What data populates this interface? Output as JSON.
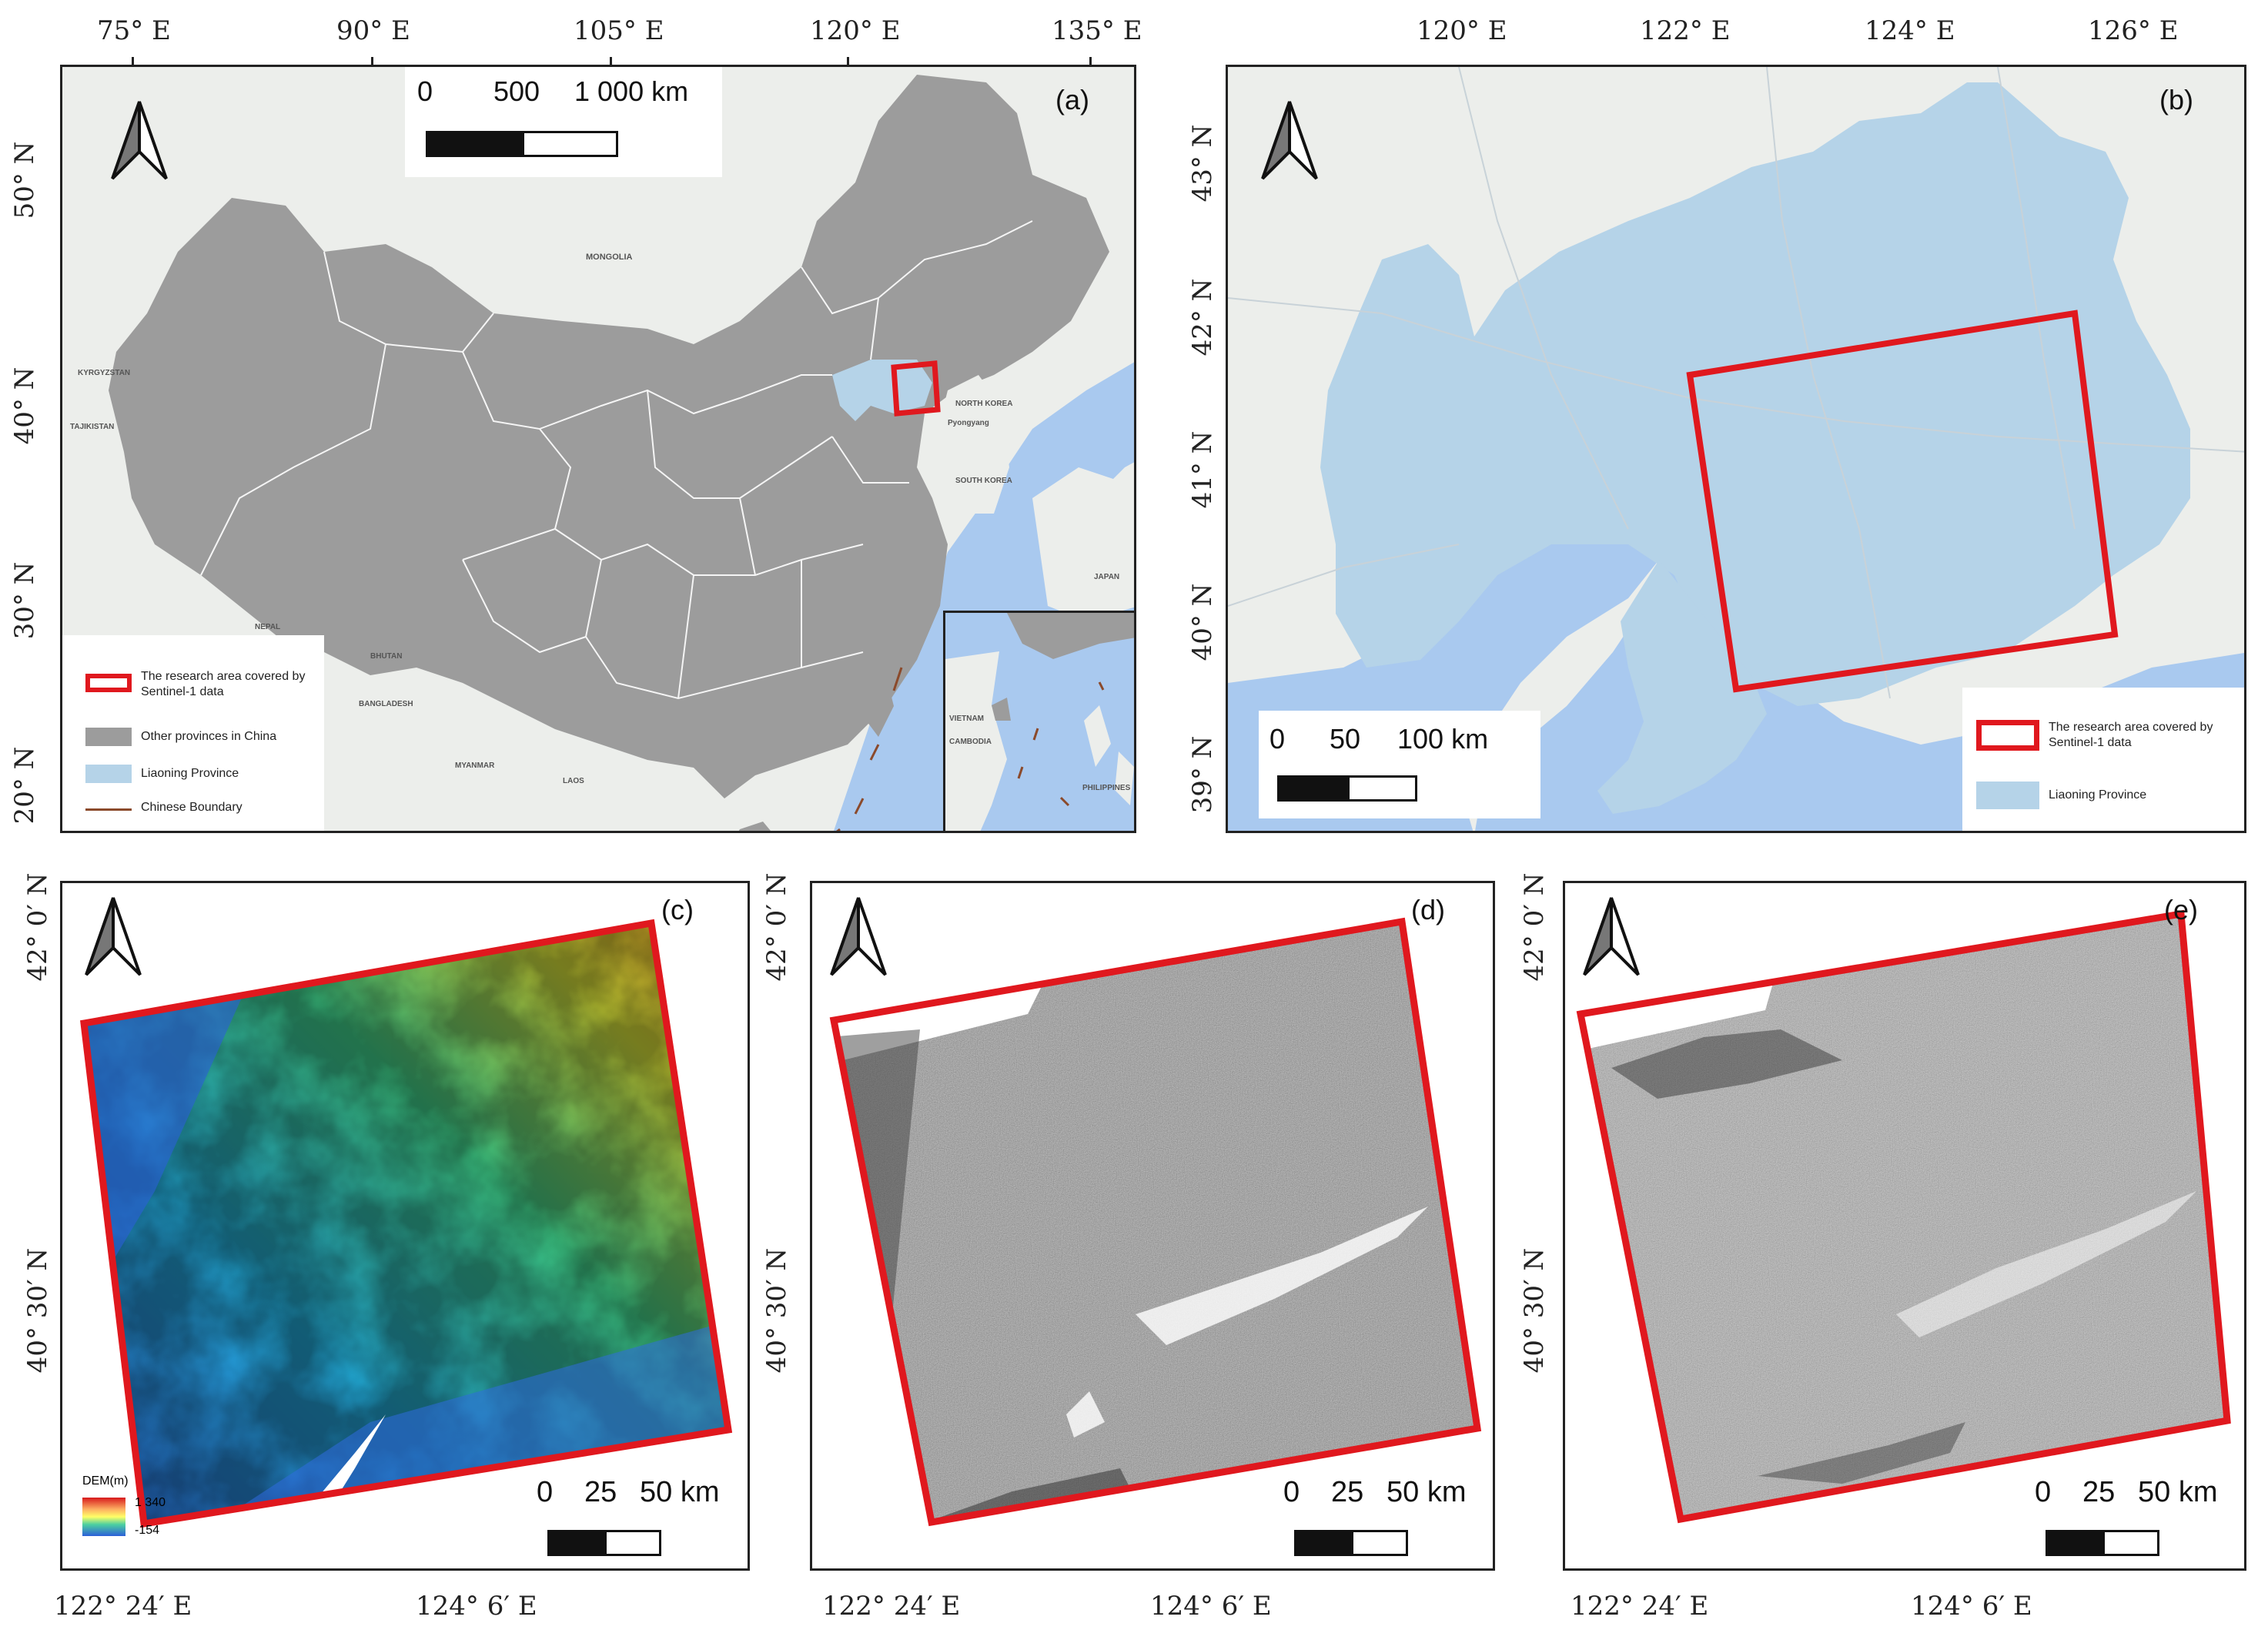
{
  "panels": {
    "a": {
      "label": "(a)",
      "top_ticks": [
        "75° E",
        "90° E",
        "105° E",
        "120° E",
        "135° E"
      ],
      "left_ticks": [
        "50° N",
        "40° N",
        "30° N",
        "20° N"
      ],
      "scale": {
        "t0": "0",
        "t1": "500",
        "t2": "1 000 km"
      },
      "legend": [
        {
          "label": "The research area covered by Sentinel-1 data"
        },
        {
          "label": "Other provinces in China"
        },
        {
          "label": "Liaoning Province"
        },
        {
          "label": "Chinese Boundary"
        }
      ],
      "place_names": [
        "MONGOLIA",
        "NORTH KOREA",
        "SOUTH KOREA",
        "KYRGYZSTAN",
        "TAJIKISTAN",
        "BHUTAN",
        "BANGLADESH",
        "MYANMAR",
        "LAOS",
        "VIETNAM",
        "CAMBODIA",
        "PHILIPPINES",
        "JAPAN",
        "NEPAL",
        "Pyongyang"
      ]
    },
    "b": {
      "label": "(b)",
      "top_ticks": [
        "120° E",
        "122° E",
        "124° E",
        "126° E"
      ],
      "left_ticks": [
        "43° N",
        "42° N",
        "41° N",
        "40° N",
        "39° N"
      ],
      "scale": {
        "t0": "0",
        "t1": "50",
        "t2": "100 km"
      },
      "legend": [
        {
          "label": "The research area covered by Sentinel-1 data"
        },
        {
          "label": "Liaoning Province"
        }
      ]
    },
    "c": {
      "label": "(c)",
      "left_ticks": [
        "42° 0′ N",
        "40° 30′ N"
      ],
      "bottom_ticks": [
        "122° 24′ E",
        "124° 6′ E"
      ],
      "scale": {
        "t0": "0",
        "t1": "25",
        "t2": "50 km"
      },
      "dem": {
        "title": "DEM(m)",
        "max": "1 340",
        "min": "-154"
      }
    },
    "d": {
      "label": "(d)",
      "left_ticks": [
        "42° 0′ N",
        "40° 30′ N"
      ],
      "bottom_ticks": [
        "122° 24′ E",
        "124° 6′ E"
      ],
      "scale": {
        "t0": "0",
        "t1": "25",
        "t2": "50 km"
      }
    },
    "e": {
      "label": "(e)",
      "left_ticks": [
        "42° 0′ N",
        "40° 30′ N"
      ],
      "bottom_ticks": [
        "122° 24′ E",
        "124° 6′ E"
      ],
      "scale": {
        "t0": "0",
        "t1": "25",
        "t2": "50 km"
      }
    }
  },
  "colors": {
    "study_area": "#e0181e",
    "china": "#9c9c9c",
    "liaoning": "#b5d3e8",
    "sea": "#a9c9ef",
    "land": "#eceeeb",
    "boundary": "#8b4a2b",
    "dem_high": "#d7191c",
    "dem_low": "#2b5fd9"
  }
}
